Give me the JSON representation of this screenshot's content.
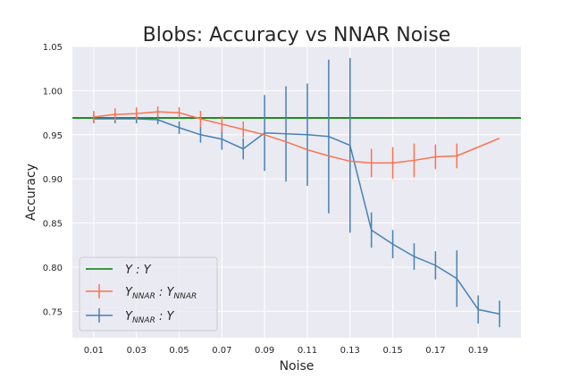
{
  "chart_data": {
    "type": "line",
    "title": "Blobs: Accuracy vs NNAR Noise",
    "xlabel": "Noise",
    "ylabel": "Accuracy",
    "xlim": [
      0.0,
      0.21
    ],
    "ylim": [
      0.72,
      1.05
    ],
    "xticks": [
      0.01,
      0.03,
      0.05,
      0.07,
      0.09,
      0.11,
      0.13,
      0.15,
      0.17,
      0.19
    ],
    "xtick_labels": [
      "0.01",
      "0.03",
      "0.05",
      "0.07",
      "0.09",
      "0.11",
      "0.13",
      "0.15",
      "0.17",
      "0.19"
    ],
    "yticks": [
      0.75,
      0.8,
      0.85,
      0.9,
      0.95,
      1.0,
      1.05
    ],
    "ytick_labels": [
      "0.75",
      "0.80",
      "0.85",
      "0.90",
      "0.95",
      "1.00",
      "1.05"
    ],
    "grid": true,
    "legend_position": "lower-left",
    "hline": {
      "name": "Y : Y",
      "y": 0.969,
      "color": "#008000"
    },
    "series": [
      {
        "name": "Y_NNAR : Y_NNAR",
        "color": "#fa7350",
        "x": [
          0.01,
          0.02,
          0.03,
          0.04,
          0.05,
          0.06,
          0.07,
          0.08,
          0.09,
          0.1,
          0.11,
          0.12,
          0.13,
          0.14,
          0.15,
          0.16,
          0.17,
          0.18,
          0.19,
          0.2
        ],
        "y": [
          0.97,
          0.973,
          0.974,
          0.976,
          0.975,
          0.968,
          0.962,
          0.956,
          0.95,
          0.942,
          0.933,
          0.926,
          0.92,
          0.918,
          0.918,
          0.921,
          0.925,
          0.926,
          0.936,
          0.946
        ],
        "err": [
          0.007,
          0.007,
          0.007,
          0.006,
          0.006,
          0.009,
          0.009,
          0.009,
          0.0,
          0.0,
          0.0,
          0.0,
          0.0,
          0.016,
          0.018,
          0.019,
          0.014,
          0.014,
          0.0,
          0.0
        ]
      },
      {
        "name": "Y_NNAR : Y",
        "color": "#4682b4",
        "x": [
          0.01,
          0.02,
          0.03,
          0.04,
          0.05,
          0.06,
          0.07,
          0.08,
          0.09,
          0.1,
          0.11,
          0.12,
          0.13,
          0.14,
          0.15,
          0.16,
          0.17,
          0.18,
          0.19,
          0.2
        ],
        "y": [
          0.968,
          0.968,
          0.968,
          0.967,
          0.958,
          0.95,
          0.945,
          0.934,
          0.952,
          0.951,
          0.95,
          0.948,
          0.938,
          0.842,
          0.826,
          0.812,
          0.802,
          0.787,
          0.752,
          0.747
        ],
        "err": [
          0.005,
          0.005,
          0.005,
          0.005,
          0.007,
          0.009,
          0.012,
          0.012,
          0.043,
          0.054,
          0.058,
          0.087,
          0.099,
          0.02,
          0.016,
          0.015,
          0.016,
          0.032,
          0.016,
          0.015
        ]
      }
    ]
  }
}
